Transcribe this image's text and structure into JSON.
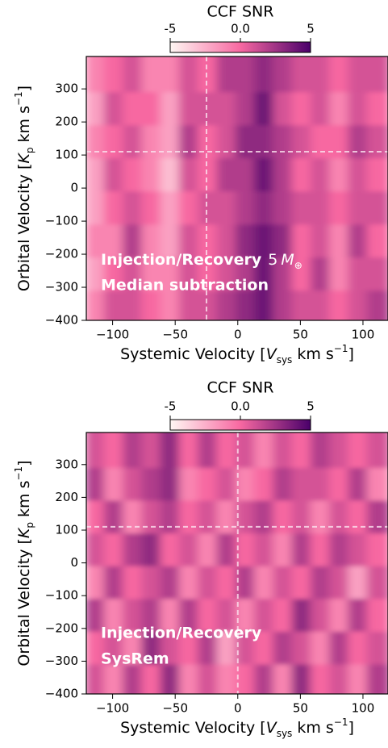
{
  "chart_data": [
    {
      "type": "heatmap",
      "colorbar_title": "CCF SNR",
      "clim": [
        -5,
        5
      ],
      "cticks": [
        -5,
        {
          "value": 0,
          "label": "0.0"
        },
        5
      ],
      "colormap": [
        "#fff7f3",
        "#f768a1",
        "#49006a"
      ],
      "x_label": [
        "Systemic Velocity [",
        "V",
        "sys",
        " km s",
        "−1",
        "]"
      ],
      "y_label": [
        "Orbital Velocity [",
        "K",
        "p",
        " km s",
        "−1",
        "]"
      ],
      "annotation": [
        "Injection/Recovery",
        "5",
        "M",
        "⊕",
        "Median subtraction"
      ],
      "xlim": [
        -121,
        120
      ],
      "ylim": [
        -400,
        398
      ],
      "xticks": [
        {
          "value": -100,
          "label": "−100"
        },
        {
          "value": -50,
          "label": "−50"
        },
        0,
        50,
        100
      ],
      "yticks": [
        {
          "value": -400,
          "label": "−400"
        },
        {
          "value": -300,
          "label": "−300"
        },
        {
          "value": -200,
          "label": "−200"
        },
        {
          "value": -100,
          "label": "−100"
        },
        0,
        100,
        200,
        300
      ],
      "injection": {
        "vsys": -25,
        "kp": 110
      },
      "x": [
        -112.5,
        -97.5,
        -82.5,
        -67.5,
        -52.5,
        -37.5,
        -22.5,
        -7.5,
        7.5,
        22.5,
        37.5,
        52.5,
        67.5,
        82.5,
        97.5,
        112.5
      ],
      "y": [
        -350,
        -250,
        -150,
        -50,
        50,
        150,
        250,
        350
      ],
      "z": [
        [
          -1,
          1,
          1,
          0,
          -1,
          1,
          1,
          2,
          3,
          4,
          2,
          1,
          1,
          0,
          1,
          2
        ],
        [
          -2,
          0,
          1,
          -1,
          -1,
          1,
          0,
          1,
          2,
          4,
          2,
          0,
          2,
          -1,
          1,
          1
        ],
        [
          -1,
          -1,
          2,
          -1,
          -2,
          1,
          0,
          1,
          3,
          4,
          3,
          0,
          1,
          -1,
          2,
          0
        ],
        [
          -2,
          0,
          1,
          0,
          -2,
          0,
          1,
          1,
          2,
          3,
          2,
          1,
          1,
          0,
          1,
          1
        ],
        [
          -2,
          1,
          0,
          -1,
          -3,
          1,
          0,
          2,
          2,
          4,
          2,
          0,
          1,
          -1,
          1,
          0
        ],
        [
          -1,
          0,
          1,
          -1,
          -2,
          2,
          0,
          1,
          3,
          3,
          2,
          1,
          0,
          0,
          2,
          1
        ],
        [
          -2,
          1,
          0,
          0,
          -2,
          1,
          1,
          1,
          2,
          4,
          1,
          0,
          1,
          -1,
          1,
          0
        ],
        [
          -1,
          0,
          1,
          -1,
          -1,
          1,
          0,
          2,
          2,
          3,
          2,
          1,
          1,
          0,
          1,
          1
        ]
      ]
    },
    {
      "type": "heatmap",
      "colorbar_title": "CCF SNR",
      "clim": [
        -5,
        5
      ],
      "cticks": [
        -5,
        {
          "value": 0,
          "label": "0.0"
        },
        5
      ],
      "colormap": [
        "#fff7f3",
        "#f768a1",
        "#49006a"
      ],
      "x_label": [
        "Systemic Velocity [",
        "V",
        "sys",
        " km s",
        "−1",
        "]"
      ],
      "y_label": [
        "Orbital Velocity [",
        "K",
        "p",
        " km s",
        "−1",
        "]"
      ],
      "annotation": [
        "Injection/Recovery",
        "SysRem"
      ],
      "xlim": [
        -121,
        120
      ],
      "ylim": [
        -400,
        398
      ],
      "xticks": [
        {
          "value": -100,
          "label": "−100"
        },
        {
          "value": -50,
          "label": "−50"
        },
        0,
        50,
        100
      ],
      "yticks": [
        {
          "value": -400,
          "label": "−400"
        },
        {
          "value": -300,
          "label": "−300"
        },
        {
          "value": -200,
          "label": "−200"
        },
        {
          "value": -100,
          "label": "−100"
        },
        0,
        100,
        200,
        300
      ],
      "injection": {
        "vsys": 0,
        "kp": 110
      },
      "x": [
        -112.5,
        -97.5,
        -82.5,
        -67.5,
        -52.5,
        -37.5,
        -22.5,
        -7.5,
        7.5,
        22.5,
        37.5,
        52.5,
        67.5,
        82.5,
        97.5,
        112.5
      ],
      "y": [
        -350,
        -250,
        -150,
        -50,
        50,
        150,
        250,
        350
      ],
      "z": [
        [
          1,
          -1,
          2,
          0,
          3,
          -1,
          1,
          -1,
          0,
          2,
          -1,
          3,
          0,
          1,
          -1,
          2
        ],
        [
          0,
          1,
          -1,
          3,
          1,
          0,
          2,
          -2,
          1,
          0,
          2,
          1,
          -1,
          2,
          0,
          1
        ],
        [
          2,
          -1,
          1,
          2,
          -1,
          2,
          0,
          1,
          -1,
          1,
          0,
          3,
          1,
          -1,
          2,
          0
        ],
        [
          -1,
          2,
          0,
          1,
          2,
          -1,
          1,
          0,
          2,
          -1,
          1,
          0,
          2,
          1,
          -2,
          1
        ],
        [
          1,
          0,
          2,
          3,
          0,
          1,
          -1,
          2,
          0,
          1,
          -1,
          2,
          0,
          2,
          1,
          0
        ],
        [
          0,
          2,
          -1,
          1,
          2,
          0,
          1,
          -1,
          1,
          2,
          0,
          1,
          -1,
          1,
          0,
          2
        ],
        [
          2,
          -1,
          1,
          2,
          3,
          -1,
          0,
          1,
          -1,
          0,
          2,
          1,
          1,
          0,
          2,
          -1
        ],
        [
          1,
          0,
          2,
          1,
          3,
          0,
          2,
          0,
          1,
          -1,
          1,
          0,
          2,
          1,
          0,
          1
        ]
      ]
    }
  ]
}
